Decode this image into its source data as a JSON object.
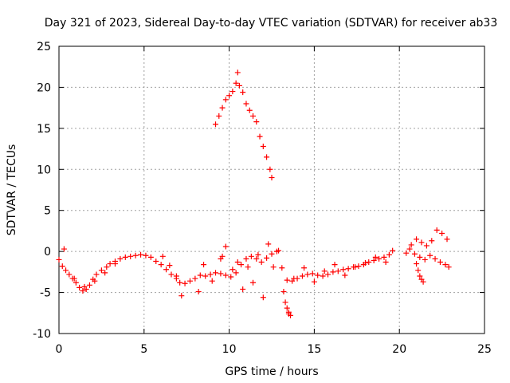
{
  "chart_data": {
    "type": "scatter",
    "title": "Day 321 of 2023, Sidereal Day-to-day VTEC variation (SDTVAR) for receiver ab33",
    "xlabel": "GPS time / hours",
    "ylabel": "SDTVAR / TECUs",
    "xlim": [
      0,
      25
    ],
    "ylim": [
      -10,
      25
    ],
    "xticks": [
      "0",
      "5",
      "10",
      "15",
      "20",
      "25"
    ],
    "yticks": [
      "-10",
      "-5",
      "0",
      "5",
      "10",
      "15",
      "20",
      "25"
    ],
    "grid": true,
    "marker": "plus",
    "color": "#ff0000",
    "series": [
      {
        "name": "SDTVAR",
        "x": [
          0.0,
          0.2,
          0.4,
          0.6,
          0.8,
          1.0,
          1.2,
          1.4,
          1.6,
          1.8,
          2.0,
          2.2,
          2.5,
          2.8,
          3.0,
          3.3,
          3.6,
          3.9,
          4.2,
          4.5,
          4.8,
          5.1,
          5.4,
          5.7,
          6.0,
          6.3,
          6.6,
          6.9,
          7.1,
          7.4,
          7.7,
          8.0,
          8.3,
          8.6,
          8.9,
          9.2,
          9.5,
          9.8,
          10.1,
          10.4,
          10.7,
          11.0,
          11.3,
          11.6,
          11.9,
          12.2,
          12.5,
          12.8,
          13.1,
          13.4,
          13.7,
          14.0,
          14.3,
          14.6,
          14.9,
          15.2,
          15.5,
          15.8,
          16.1,
          16.4,
          16.7,
          17.0,
          17.3,
          17.6,
          17.9,
          18.2,
          18.5,
          18.8,
          19.1,
          19.4,
          19.6,
          9.2,
          9.4,
          9.6,
          9.8,
          10.0,
          10.2,
          10.4,
          10.5,
          10.6,
          10.8,
          11.0,
          11.2,
          11.4,
          11.6,
          11.8,
          12.0,
          12.2,
          12.4,
          12.5,
          0.3,
          0.9,
          1.5,
          2.1,
          2.7,
          3.3,
          6.1,
          6.5,
          6.9,
          7.2,
          8.2,
          8.5,
          9.0,
          9.6,
          10.2,
          10.8,
          11.4,
          12.0,
          12.6,
          13.2,
          13.5,
          13.8,
          14.4,
          15.0,
          15.6,
          16.2,
          16.8,
          17.4,
          18.0,
          18.6,
          19.2,
          20.4,
          20.7,
          21.0,
          21.3,
          21.6,
          21.9,
          22.2,
          22.5,
          22.8,
          20.6,
          20.9,
          21.2,
          21.5,
          21.8,
          22.1,
          22.4,
          22.7,
          22.9,
          21.0,
          21.1,
          21.2,
          21.3,
          21.4,
          13.3,
          13.4,
          13.5,
          13.6,
          9.5,
          9.8,
          10.5,
          11.1,
          11.7,
          12.3,
          12.9
        ],
        "y": [
          -1.0,
          -1.8,
          -2.3,
          -2.8,
          -3.3,
          -3.8,
          -4.4,
          -4.8,
          -4.6,
          -4.1,
          -3.4,
          -2.8,
          -2.3,
          -1.9,
          -1.5,
          -1.2,
          -0.9,
          -0.7,
          -0.6,
          -0.5,
          -0.4,
          -0.5,
          -0.7,
          -1.2,
          -1.6,
          -2.2,
          -2.8,
          -3.3,
          -3.8,
          -3.9,
          -3.6,
          -3.3,
          -2.9,
          -3.0,
          -2.8,
          -2.6,
          -2.7,
          -2.9,
          -3.1,
          -2.6,
          -1.6,
          -0.9,
          -0.6,
          -0.9,
          -1.3,
          -0.8,
          -0.3,
          0.0,
          -2.0,
          -3.5,
          -3.6,
          -3.3,
          -3.0,
          -2.8,
          -2.7,
          -2.9,
          -3.0,
          -2.8,
          -2.5,
          -2.4,
          -2.2,
          -2.1,
          -1.9,
          -1.8,
          -1.6,
          -1.3,
          -1.1,
          -0.9,
          -0.7,
          -0.4,
          0.1,
          15.5,
          16.5,
          17.5,
          18.5,
          19.0,
          19.5,
          20.5,
          21.8,
          20.2,
          19.4,
          18.0,
          17.2,
          16.5,
          15.8,
          14.0,
          12.8,
          11.5,
          10.0,
          9.0,
          0.3,
          -3.3,
          -4.3,
          -3.6,
          -2.6,
          -1.5,
          -0.6,
          -1.7,
          -3.0,
          -5.4,
          -4.9,
          -1.6,
          -3.6,
          -0.6,
          -2.2,
          -4.6,
          -3.8,
          -5.6,
          -1.9,
          -4.9,
          -7.6,
          -3.3,
          -2.0,
          -3.7,
          -2.4,
          -1.6,
          -2.9,
          -1.9,
          -1.4,
          -0.7,
          -1.3,
          -0.2,
          0.8,
          1.5,
          1.1,
          0.7,
          1.3,
          2.6,
          2.2,
          1.5,
          0.3,
          -0.3,
          -0.7,
          -1.0,
          -0.5,
          -0.9,
          -1.3,
          -1.6,
          -1.9,
          -1.5,
          -2.3,
          -3.0,
          -3.4,
          -3.7,
          -6.2,
          -6.9,
          -7.4,
          -7.8,
          -0.9,
          0.6,
          -1.3,
          -1.9,
          -0.4,
          0.9,
          0.1
        ]
      }
    ]
  }
}
